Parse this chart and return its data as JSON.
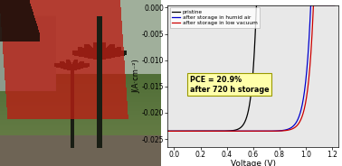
{
  "xlabel": "Voltage (V)",
  "ylabel": "J(A·cm⁻²)",
  "xlim": [
    -0.05,
    1.25
  ],
  "ylim": [
    -0.0265,
    0.0005
  ],
  "yticks": [
    0.0,
    -0.005,
    -0.01,
    -0.015,
    -0.02,
    -0.025
  ],
  "ytick_labels": [
    "0.000",
    "-0.005",
    "-0.010",
    "-0.015",
    "-0.020",
    "-0.025"
  ],
  "xticks": [
    0.0,
    0.2,
    0.4,
    0.6,
    0.8,
    1.0,
    1.2
  ],
  "legend_labels": [
    "pristine",
    "after storage in humid air",
    "after storage in low vacuum"
  ],
  "legend_colors": [
    "black",
    "#0000cc",
    "#cc0000"
  ],
  "annotation_text": "PCE = 20.9%\nafter 720 h storage",
  "annotation_bg": "#ffffaa",
  "annotation_edge": "#999900",
  "bg_color": "#e8e8e8",
  "line_colors": [
    "black",
    "#0000cc",
    "#cc0000"
  ],
  "photo_sky_color": [
    160,
    185,
    160
  ],
  "photo_grass_color": [
    85,
    125,
    65
  ],
  "photo_ground_color": [
    100,
    90,
    70
  ],
  "photo_cell_color": [
    180,
    25,
    15
  ],
  "photo_dark_color": [
    20,
    15,
    10
  ]
}
